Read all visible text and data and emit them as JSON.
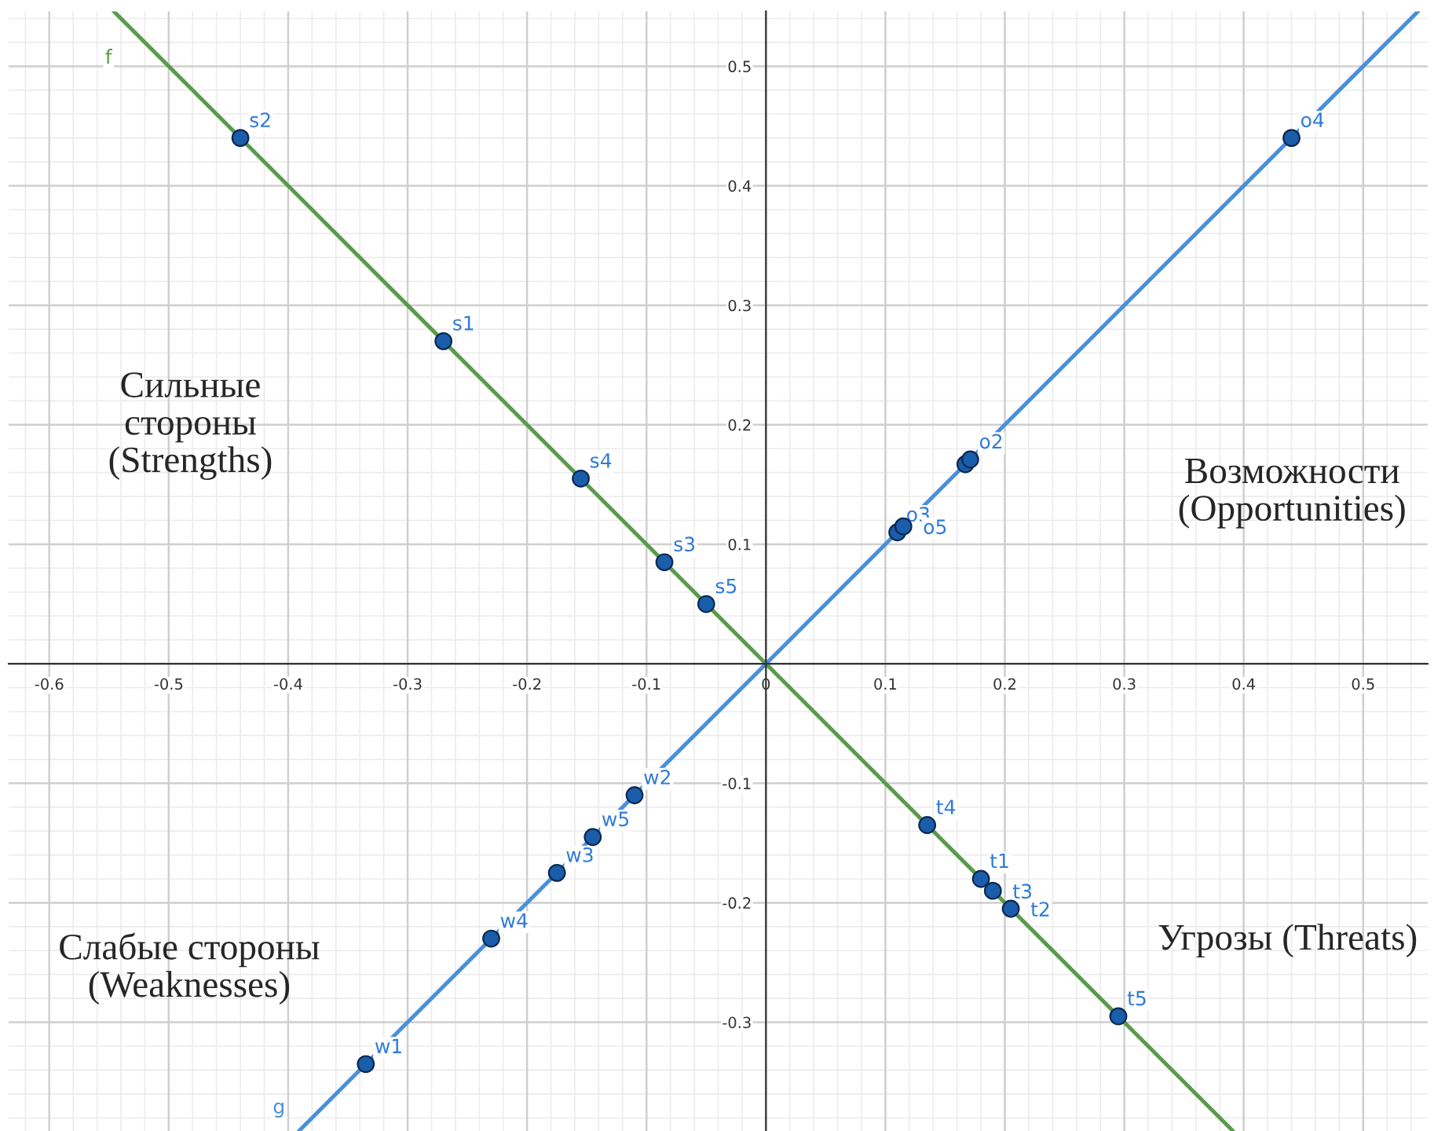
{
  "chart_data": {
    "type": "scatter",
    "xlim": [
      -0.634,
      0.554
    ],
    "ylim": [
      -0.391,
      0.546
    ],
    "xticks": [
      -0.6,
      -0.5,
      -0.4,
      -0.3,
      -0.2,
      -0.1,
      0,
      0.1,
      0.2,
      0.3,
      0.4,
      0.5
    ],
    "yticks": [
      -0.3,
      -0.2,
      -0.1,
      {
        "value": 0,
        "label": null
      },
      0.1,
      0.2,
      0.3,
      0.4,
      0.5
    ],
    "grid": true,
    "series": [
      {
        "name": "f",
        "type": "line",
        "color": "#5b9a4c",
        "x": [
          -0.546,
          0.391
        ],
        "values": [
          0.546,
          -0.391
        ]
      },
      {
        "name": "g",
        "type": "line",
        "color": "#4a8fdb",
        "x": [
          -0.391,
          0.546
        ],
        "values": [
          -0.391,
          0.546
        ]
      },
      {
        "marker": "circle",
        "color": "#1a5dab",
        "x": [
          -0.44,
          -0.27,
          -0.155,
          -0.085,
          -0.05,
          0.44,
          0.11,
          0.115,
          0.167,
          0.171,
          0.135,
          0.18,
          0.19,
          0.205,
          0.295,
          -0.11,
          -0.145,
          -0.175,
          -0.23,
          -0.335
        ],
        "values": [
          0.44,
          0.27,
          0.155,
          0.085,
          0.05,
          0.44,
          0.11,
          0.115,
          0.167,
          0.171,
          -0.135,
          -0.18,
          -0.19,
          -0.205,
          -0.295,
          -0.11,
          -0.145,
          -0.175,
          -0.23,
          -0.335
        ],
        "value_labels": [
          "s2",
          "s1",
          "s4",
          "s3",
          "s5",
          "o4",
          "o3",
          "o5",
          null,
          "o2",
          "t4",
          "t1",
          "t3",
          "t2",
          "t5",
          "w2",
          "w5",
          "w3",
          "w4",
          "w1"
        ]
      }
    ],
    "annotations": [
      "Сильные\nстороны\n(Strengths)",
      "Возможности\n(Opportunities)",
      "Слабые стороны\n(Weaknesses)",
      "Угрозы (Threats)"
    ]
  }
}
